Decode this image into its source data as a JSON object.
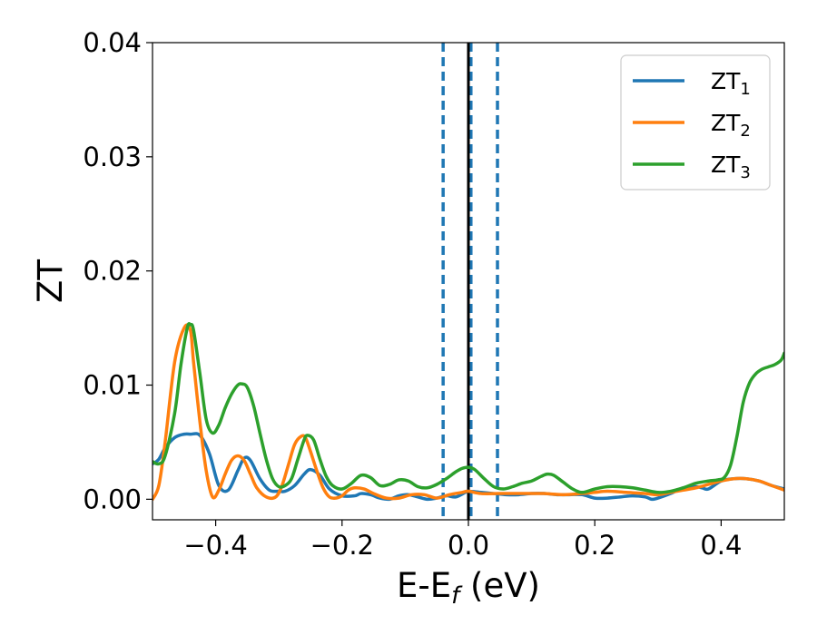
{
  "chart_data": {
    "type": "line",
    "title": "",
    "xlabel": "E-E",
    "xlabel_sub": "f",
    "xlabel_unit": " (eV)",
    "ylabel": "ZT",
    "xlim": [
      -0.5,
      0.5
    ],
    "ylim": [
      -0.0018,
      0.04
    ],
    "xticks": [
      -0.4,
      -0.2,
      0.0,
      0.2,
      0.4
    ],
    "xtick_labels": [
      "−0.4",
      "−0.2",
      "0.0",
      "0.2",
      "0.4"
    ],
    "yticks": [
      0.0,
      0.01,
      0.02,
      0.03,
      0.04
    ],
    "ytick_labels": [
      "0.00",
      "0.01",
      "0.02",
      "0.03",
      "0.04"
    ],
    "grid": false,
    "legend_position": "top-right",
    "vlines": [
      {
        "x": -0.04,
        "style": "dashed",
        "color": "#1f77b4"
      },
      {
        "x": 0.004,
        "style": "dashed",
        "color": "#1f77b4"
      },
      {
        "x": 0.046,
        "style": "dashed",
        "color": "#1f77b4"
      },
      {
        "x": 0.0,
        "style": "solid",
        "color": "#000000"
      }
    ],
    "series": [
      {
        "name": "ZT",
        "name_sub": "1",
        "color": "#1f77b4",
        "x": [
          -0.5,
          -0.49,
          -0.48,
          -0.465,
          -0.45,
          -0.44,
          -0.425,
          -0.41,
          -0.395,
          -0.38,
          -0.365,
          -0.355,
          -0.345,
          -0.33,
          -0.315,
          -0.3,
          -0.29,
          -0.275,
          -0.26,
          -0.25,
          -0.235,
          -0.22,
          -0.2,
          -0.18,
          -0.17,
          -0.155,
          -0.14,
          -0.125,
          -0.11,
          -0.095,
          -0.08,
          -0.065,
          -0.05,
          -0.035,
          -0.02,
          -0.005,
          0.0,
          0.02,
          0.04,
          0.06,
          0.08,
          0.1,
          0.12,
          0.14,
          0.16,
          0.18,
          0.2,
          0.22,
          0.24,
          0.26,
          0.28,
          0.29,
          0.3,
          0.32,
          0.34,
          0.36,
          0.37,
          0.38,
          0.4,
          0.42,
          0.44,
          0.46,
          0.48,
          0.5
        ],
        "y": [
          0.0031,
          0.0035,
          0.0045,
          0.0054,
          0.0057,
          0.0057,
          0.0056,
          0.004,
          0.0012,
          0.0008,
          0.0025,
          0.0036,
          0.0034,
          0.0018,
          0.0008,
          0.0007,
          0.0007,
          0.0012,
          0.0022,
          0.0026,
          0.0021,
          0.0009,
          0.0003,
          0.0003,
          0.0005,
          0.0004,
          0.0001,
          0.0,
          0.0003,
          0.0004,
          0.0002,
          0.0,
          0.0001,
          0.0003,
          0.0002,
          0.0006,
          0.0007,
          0.0006,
          0.0005,
          0.0004,
          0.0004,
          0.0005,
          0.0005,
          0.0004,
          0.0004,
          0.0004,
          0.0001,
          0.0001,
          0.0002,
          0.0003,
          0.0002,
          0.0,
          0.0001,
          0.0005,
          0.001,
          0.0011,
          0.001,
          0.0009,
          0.0016,
          0.0018,
          0.0018,
          0.0016,
          0.0012,
          0.0009
        ]
      },
      {
        "name": "ZT",
        "name_sub": "2",
        "color": "#ff7f0e",
        "x": [
          -0.5,
          -0.49,
          -0.48,
          -0.465,
          -0.45,
          -0.44,
          -0.435,
          -0.425,
          -0.415,
          -0.405,
          -0.395,
          -0.385,
          -0.375,
          -0.365,
          -0.355,
          -0.345,
          -0.335,
          -0.32,
          -0.305,
          -0.295,
          -0.285,
          -0.275,
          -0.265,
          -0.258,
          -0.25,
          -0.24,
          -0.23,
          -0.22,
          -0.21,
          -0.2,
          -0.19,
          -0.18,
          -0.165,
          -0.15,
          -0.13,
          -0.11,
          -0.09,
          -0.07,
          -0.05,
          -0.03,
          -0.01,
          0.0,
          0.02,
          0.05,
          0.08,
          0.1,
          0.12,
          0.15,
          0.18,
          0.2,
          0.22,
          0.25,
          0.28,
          0.3,
          0.32,
          0.34,
          0.36,
          0.38,
          0.4,
          0.42,
          0.44,
          0.46,
          0.48,
          0.5
        ],
        "y": [
          0.0,
          0.0012,
          0.005,
          0.012,
          0.015,
          0.0148,
          0.012,
          0.0068,
          0.0025,
          0.0002,
          0.0008,
          0.0022,
          0.0034,
          0.0038,
          0.0034,
          0.0022,
          0.001,
          0.0002,
          0.0002,
          0.0012,
          0.003,
          0.0048,
          0.0055,
          0.0054,
          0.0042,
          0.0025,
          0.001,
          0.0002,
          0.0001,
          0.0003,
          0.0008,
          0.001,
          0.0009,
          0.0005,
          0.0001,
          0.0001,
          0.0004,
          0.0004,
          0.0001,
          0.0004,
          0.0006,
          0.0007,
          0.0005,
          0.0005,
          0.0005,
          0.0005,
          0.0005,
          0.0004,
          0.0005,
          0.0006,
          0.0007,
          0.0006,
          0.0005,
          0.0004,
          0.0006,
          0.0008,
          0.001,
          0.0013,
          0.0016,
          0.0018,
          0.0018,
          0.0016,
          0.0012,
          0.0008
        ]
      },
      {
        "name": "ZT",
        "name_sub": "3",
        "color": "#2ca02c",
        "x": [
          -0.5,
          -0.49,
          -0.48,
          -0.465,
          -0.455,
          -0.445,
          -0.44,
          -0.435,
          -0.425,
          -0.415,
          -0.405,
          -0.395,
          -0.385,
          -0.375,
          -0.365,
          -0.358,
          -0.35,
          -0.34,
          -0.33,
          -0.32,
          -0.31,
          -0.3,
          -0.29,
          -0.28,
          -0.27,
          -0.26,
          -0.255,
          -0.245,
          -0.235,
          -0.225,
          -0.215,
          -0.2,
          -0.185,
          -0.17,
          -0.155,
          -0.14,
          -0.125,
          -0.11,
          -0.095,
          -0.08,
          -0.065,
          -0.05,
          -0.035,
          -0.02,
          -0.01,
          0.0,
          0.01,
          0.025,
          0.04,
          0.055,
          0.07,
          0.085,
          0.1,
          0.115,
          0.125,
          0.135,
          0.15,
          0.165,
          0.18,
          0.2,
          0.22,
          0.24,
          0.26,
          0.28,
          0.3,
          0.32,
          0.34,
          0.36,
          0.38,
          0.395,
          0.405,
          0.415,
          0.425,
          0.435,
          0.445,
          0.455,
          0.465,
          0.475,
          0.485,
          0.495,
          0.5
        ],
        "y": [
          0.0033,
          0.0031,
          0.0038,
          0.0075,
          0.0118,
          0.015,
          0.0153,
          0.0148,
          0.011,
          0.007,
          0.0058,
          0.0065,
          0.008,
          0.0092,
          0.01,
          0.0101,
          0.0098,
          0.0082,
          0.0058,
          0.0035,
          0.0018,
          0.0011,
          0.0012,
          0.0018,
          0.0035,
          0.0052,
          0.0056,
          0.0052,
          0.0035,
          0.002,
          0.0012,
          0.0009,
          0.0014,
          0.0021,
          0.0019,
          0.0012,
          0.0013,
          0.0017,
          0.0016,
          0.0011,
          0.001,
          0.0013,
          0.0018,
          0.0024,
          0.0027,
          0.0028,
          0.0026,
          0.0018,
          0.0011,
          0.0009,
          0.0011,
          0.0014,
          0.0016,
          0.002,
          0.0022,
          0.0021,
          0.0015,
          0.0009,
          0.0006,
          0.0009,
          0.0011,
          0.0011,
          0.001,
          0.0008,
          0.0006,
          0.0007,
          0.001,
          0.0014,
          0.0016,
          0.0017,
          0.0019,
          0.003,
          0.0055,
          0.0085,
          0.0102,
          0.011,
          0.0114,
          0.0116,
          0.0118,
          0.0122,
          0.0128
        ]
      }
    ]
  }
}
